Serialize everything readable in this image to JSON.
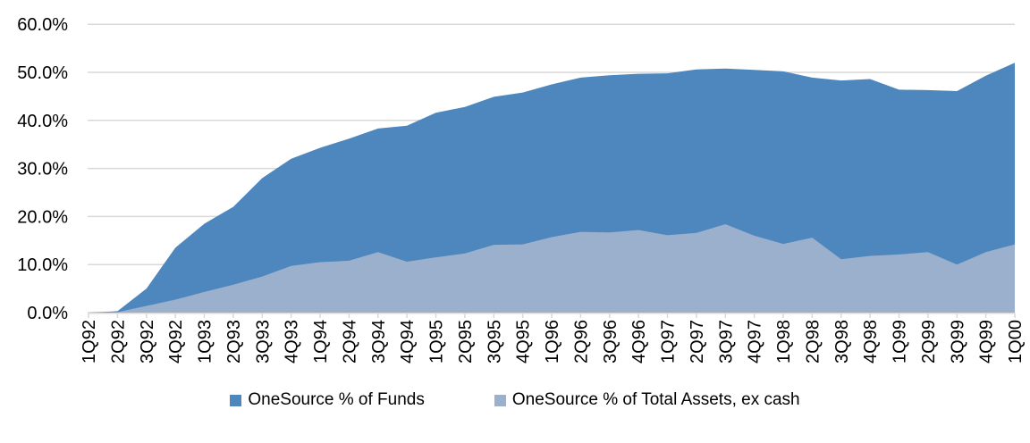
{
  "chart_data": {
    "type": "area",
    "title": "",
    "xlabel": "",
    "ylabel": "",
    "ylim": [
      0,
      60
    ],
    "y_tick_values": [
      60,
      50,
      40,
      30,
      20,
      10,
      0
    ],
    "y_tick_labels": [
      "60.0%",
      "50.0%",
      "40.0%",
      "30.0%",
      "20.0%",
      "10.0%",
      "0.0%"
    ],
    "grid": true,
    "legend_position": "bottom",
    "series_overlap": "overlapping, not stacked; Funds drawn behind Assets",
    "categories": [
      "1Q92",
      "2Q92",
      "3Q92",
      "4Q92",
      "1Q93",
      "2Q93",
      "3Q93",
      "4Q93",
      "1Q94",
      "2Q94",
      "3Q94",
      "4Q94",
      "1Q95",
      "2Q95",
      "3Q95",
      "4Q95",
      "1Q96",
      "2Q96",
      "3Q96",
      "4Q96",
      "1Q97",
      "2Q97",
      "3Q97",
      "4Q97",
      "1Q98",
      "2Q98",
      "3Q98",
      "4Q98",
      "1Q99",
      "2Q99",
      "3Q99",
      "4Q99",
      "1Q00"
    ],
    "series": [
      {
        "name": "OneSource % of Funds",
        "color": "#4D87BE",
        "values": [
          0.0,
          0.3,
          5.0,
          13.5,
          18.5,
          22.0,
          28.0,
          32.0,
          34.3,
          36.2,
          38.3,
          38.9,
          41.6,
          42.8,
          44.9,
          45.8,
          47.5,
          48.9,
          49.4,
          49.7,
          49.8,
          50.6,
          50.8,
          50.5,
          50.2,
          48.9,
          48.3,
          48.6,
          46.4,
          46.3,
          46.1,
          49.3,
          52.0
        ]
      },
      {
        "name": "OneSource % of Total Assets, ex cash",
        "color": "#9BB0CC",
        "values": [
          0.0,
          0.1,
          1.4,
          2.7,
          4.3,
          5.8,
          7.5,
          9.7,
          10.5,
          10.8,
          12.6,
          10.6,
          11.5,
          12.3,
          14.1,
          14.2,
          15.7,
          16.8,
          16.7,
          17.2,
          16.1,
          16.6,
          18.4,
          16.0,
          14.3,
          15.6,
          11.1,
          11.8,
          12.1,
          12.6,
          10.0,
          12.6,
          14.2
        ]
      }
    ]
  },
  "colors": {
    "background": "#FFFFFF",
    "grid": "#D9D9D9",
    "axis": "#D9D9D9",
    "text": "#000000"
  },
  "legend": {
    "items": [
      {
        "label": "OneSource % of Funds"
      },
      {
        "label": "OneSource % of Total Assets, ex cash"
      }
    ]
  }
}
